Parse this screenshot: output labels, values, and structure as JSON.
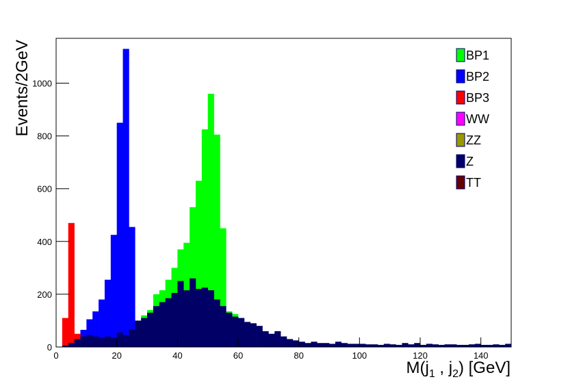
{
  "chart_data": {
    "type": "histogram",
    "x_label": "M(j1 , j2) [GeV]",
    "y_label": "Events/2GeV",
    "bins": [
      0,
      2,
      4,
      6,
      8,
      10,
      12,
      14,
      16,
      18,
      20,
      22,
      24,
      26,
      28,
      30,
      32,
      34,
      36,
      38,
      40,
      42,
      44,
      46,
      48,
      50,
      52,
      54,
      56,
      58,
      60,
      62,
      64,
      66,
      68,
      70,
      72,
      74,
      76,
      78,
      80,
      82,
      84,
      86,
      88,
      90,
      92,
      94,
      96,
      98,
      100,
      102,
      104,
      106,
      108,
      110,
      112,
      114,
      116,
      118,
      120,
      122,
      124,
      126,
      128,
      130,
      132,
      134,
      136,
      138,
      140,
      142,
      144,
      146,
      148,
      150
    ],
    "xlim": [
      0,
      150
    ],
    "xticks": [
      0,
      20,
      40,
      60,
      80,
      100,
      120,
      140
    ],
    "ylim": [
      0,
      1170
    ],
    "yticks": [
      0,
      200,
      400,
      600,
      800,
      1000
    ],
    "legend": "top-right",
    "series": [
      {
        "name": "BP1",
        "color": "#00ff00",
        "values": [
          0,
          0,
          0,
          0,
          0,
          0,
          0,
          0,
          0,
          0,
          0,
          30,
          60,
          100,
          120,
          140,
          200,
          215,
          255,
          300,
          370,
          395,
          530,
          630,
          825,
          960,
          805,
          450,
          135,
          125,
          0,
          0,
          0,
          0,
          0,
          0,
          0,
          0,
          0,
          0,
          0,
          0,
          0,
          0,
          0,
          0,
          0,
          0,
          0,
          0,
          0,
          0,
          0,
          0,
          0,
          0,
          0,
          0,
          0,
          0,
          0,
          0,
          0,
          0,
          0,
          0,
          0,
          0,
          0,
          0,
          0,
          0,
          0,
          0,
          0
        ]
      },
      {
        "name": "BP2",
        "color": "#0000ff",
        "values": [
          0,
          0,
          0,
          30,
          65,
          105,
          135,
          180,
          255,
          425,
          850,
          1130,
          455,
          60,
          0,
          0,
          0,
          0,
          0,
          0,
          0,
          0,
          0,
          0,
          0,
          0,
          0,
          0,
          0,
          0,
          0,
          0,
          0,
          0,
          0,
          0,
          0,
          0,
          0,
          0,
          0,
          0,
          0,
          0,
          0,
          0,
          0,
          0,
          0,
          0,
          0,
          0,
          0,
          0,
          0,
          0,
          0,
          0,
          0,
          0,
          0,
          0,
          0,
          0,
          0,
          0,
          0,
          0,
          0,
          0,
          0,
          0,
          0,
          0,
          0
        ]
      },
      {
        "name": "BP3",
        "color": "#ff0000",
        "values": [
          0,
          110,
          470,
          50,
          0,
          0,
          0,
          0,
          0,
          0,
          0,
          0,
          0,
          0,
          0,
          0,
          0,
          0,
          0,
          0,
          0,
          0,
          0,
          0,
          0,
          0,
          0,
          0,
          0,
          0,
          0,
          0,
          0,
          0,
          0,
          0,
          0,
          0,
          0,
          0,
          0,
          0,
          0,
          0,
          0,
          0,
          0,
          0,
          0,
          0,
          0,
          0,
          0,
          0,
          0,
          0,
          0,
          0,
          0,
          0,
          0,
          0,
          0,
          0,
          0,
          0,
          0,
          0,
          0,
          0,
          0,
          0,
          0,
          0,
          0
        ]
      },
      {
        "name": "WW",
        "color": "#ff00ff",
        "values": [
          0,
          0,
          0,
          0,
          0,
          0,
          0,
          0,
          0,
          0,
          0,
          0,
          0,
          0,
          0,
          0,
          0,
          0,
          0,
          0,
          0,
          0,
          0,
          0,
          0,
          0,
          0,
          0,
          0,
          0,
          0,
          0,
          0,
          0,
          0,
          0,
          0,
          0,
          0,
          0,
          0,
          0,
          0,
          0,
          0,
          0,
          0,
          0,
          0,
          0,
          0,
          0,
          0,
          0,
          0,
          0,
          0,
          0,
          0,
          0,
          0,
          0,
          0,
          0,
          0,
          0,
          0,
          0,
          0,
          0,
          0,
          0,
          0,
          0,
          0
        ]
      },
      {
        "name": "ZZ",
        "color": "#999900",
        "values": [
          0,
          0,
          0,
          0,
          0,
          0,
          0,
          0,
          0,
          0,
          0,
          0,
          0,
          0,
          0,
          0,
          0,
          0,
          0,
          0,
          0,
          0,
          0,
          0,
          0,
          0,
          0,
          0,
          0,
          0,
          0,
          0,
          0,
          0,
          0,
          0,
          0,
          0,
          0,
          0,
          0,
          0,
          0,
          0,
          0,
          0,
          0,
          0,
          0,
          0,
          0,
          0,
          0,
          0,
          0,
          0,
          0,
          0,
          0,
          0,
          0,
          0,
          0,
          0,
          0,
          0,
          0,
          0,
          0,
          0,
          0,
          0,
          0,
          0,
          0
        ]
      },
      {
        "name": "Z",
        "color": "#000066",
        "values": [
          0,
          5,
          15,
          30,
          40,
          45,
          40,
          35,
          40,
          35,
          55,
          45,
          65,
          100,
          110,
          130,
          155,
          170,
          185,
          205,
          250,
          215,
          260,
          220,
          225,
          215,
          180,
          155,
          130,
          115,
          110,
          95,
          90,
          80,
          60,
          50,
          60,
          40,
          30,
          25,
          20,
          15,
          20,
          15,
          15,
          12,
          20,
          15,
          12,
          12,
          12,
          10,
          10,
          8,
          12,
          10,
          8,
          15,
          10,
          15,
          8,
          12,
          10,
          8,
          10,
          10,
          8,
          8,
          10,
          12,
          8,
          8,
          10,
          8,
          12
        ]
      },
      {
        "name": "TT",
        "color": "#660000",
        "values": [
          0,
          0,
          0,
          0,
          0,
          0,
          0,
          0,
          0,
          0,
          0,
          0,
          0,
          0,
          0,
          0,
          0,
          0,
          0,
          0,
          0,
          0,
          0,
          0,
          0,
          0,
          0,
          0,
          0,
          0,
          0,
          0,
          0,
          0,
          0,
          0,
          0,
          0,
          0,
          0,
          0,
          0,
          0,
          0,
          0,
          0,
          0,
          0,
          0,
          0,
          0,
          0,
          0,
          0,
          0,
          0,
          0,
          0,
          0,
          0,
          0,
          0,
          0,
          0,
          0,
          0,
          0,
          0,
          0,
          0,
          0,
          0,
          0,
          0,
          0
        ]
      }
    ]
  }
}
